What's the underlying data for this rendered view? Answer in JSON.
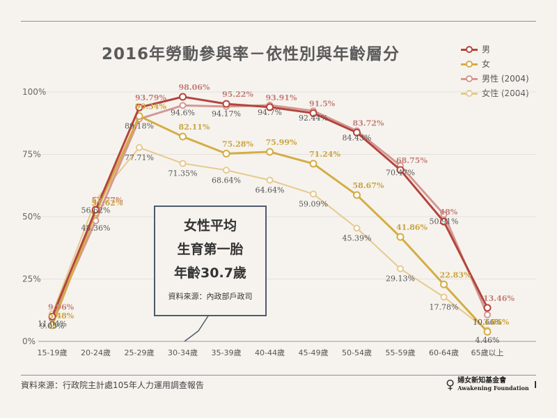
{
  "chart_data": {
    "type": "line",
    "title": "2016年勞動參與率－依性別與年齡層分",
    "categories": [
      "15-19歲",
      "20-24歲",
      "25-29歲",
      "30-34歲",
      "35-39歲",
      "40-44歲",
      "45-49歲",
      "50-54歲",
      "55-59歲",
      "60-64歲",
      "65歲以上"
    ],
    "ylim": [
      0,
      100
    ],
    "yticks": [
      "0%",
      "25%",
      "50%",
      "75%",
      "100%"
    ],
    "grid": true,
    "legend_position": "top-right",
    "series": [
      {
        "name": "男",
        "color": "#b5443c",
        "values": [
          9.96,
          52.77,
          93.79,
          98.06,
          95.22,
          93.91,
          91.5,
          83.72,
          68.75,
          48,
          13.46
        ],
        "labels": [
          "9.96%",
          "52.77%",
          "93.79%",
          "98.06%",
          "95.22%",
          "93.91%",
          "91.5%",
          "83.72%",
          "68.75%",
          "48%",
          "13.46%"
        ]
      },
      {
        "name": "女",
        "color": "#d4ad44",
        "values": [
          6.48,
          51.62,
          90.34,
          82.11,
          75.28,
          75.99,
          71.24,
          58.67,
          41.86,
          22.83,
          3.86
        ],
        "labels": [
          "6.48%",
          "51.62%",
          "90.34%",
          "82.11%",
          "75.28%",
          "75.99%",
          "71.24%",
          "58.67%",
          "41.86%",
          "22.83%",
          "3.86%"
        ]
      },
      {
        "name": "男性 (2004)",
        "color": "#d49894",
        "values": [
          9.05,
          48.36,
          89.18,
          94.6,
          94.17,
          94.7,
          92.44,
          84.43,
          70.47,
          50.91,
          10.66
        ],
        "labels": [
          "9.05%",
          "48.36%",
          "89.18%",
          "94.6%",
          "94.17%",
          "94.7%",
          "92.44%",
          "84.43%",
          "70.47%",
          "50.91%",
          "10.66%"
        ]
      },
      {
        "name": "女性 (2004)",
        "color": "#e6c98f",
        "values": [
          11.04,
          56.62,
          77.71,
          71.35,
          68.64,
          64.64,
          59.09,
          45.39,
          29.13,
          17.78,
          4.46
        ],
        "labels": [
          "11.04%",
          "56.62%",
          "77.71%",
          "71.35%",
          "68.64%",
          "64.64%",
          "59.09%",
          "45.39%",
          "29.13%",
          "17.78%",
          "4.46%"
        ]
      }
    ]
  },
  "callout": {
    "line1": "女性平均",
    "line2": "生育第一胎",
    "line3": "年齡30.7歲",
    "source": "資料來源：內政部戶政司"
  },
  "footer": {
    "source": "資料來源：行政院主計處105年人力運用調查報告",
    "logo_cn": "婦女新知基金會",
    "logo_en": "Awakening Foundation",
    "logo_icon": "female-symbol-icon"
  }
}
